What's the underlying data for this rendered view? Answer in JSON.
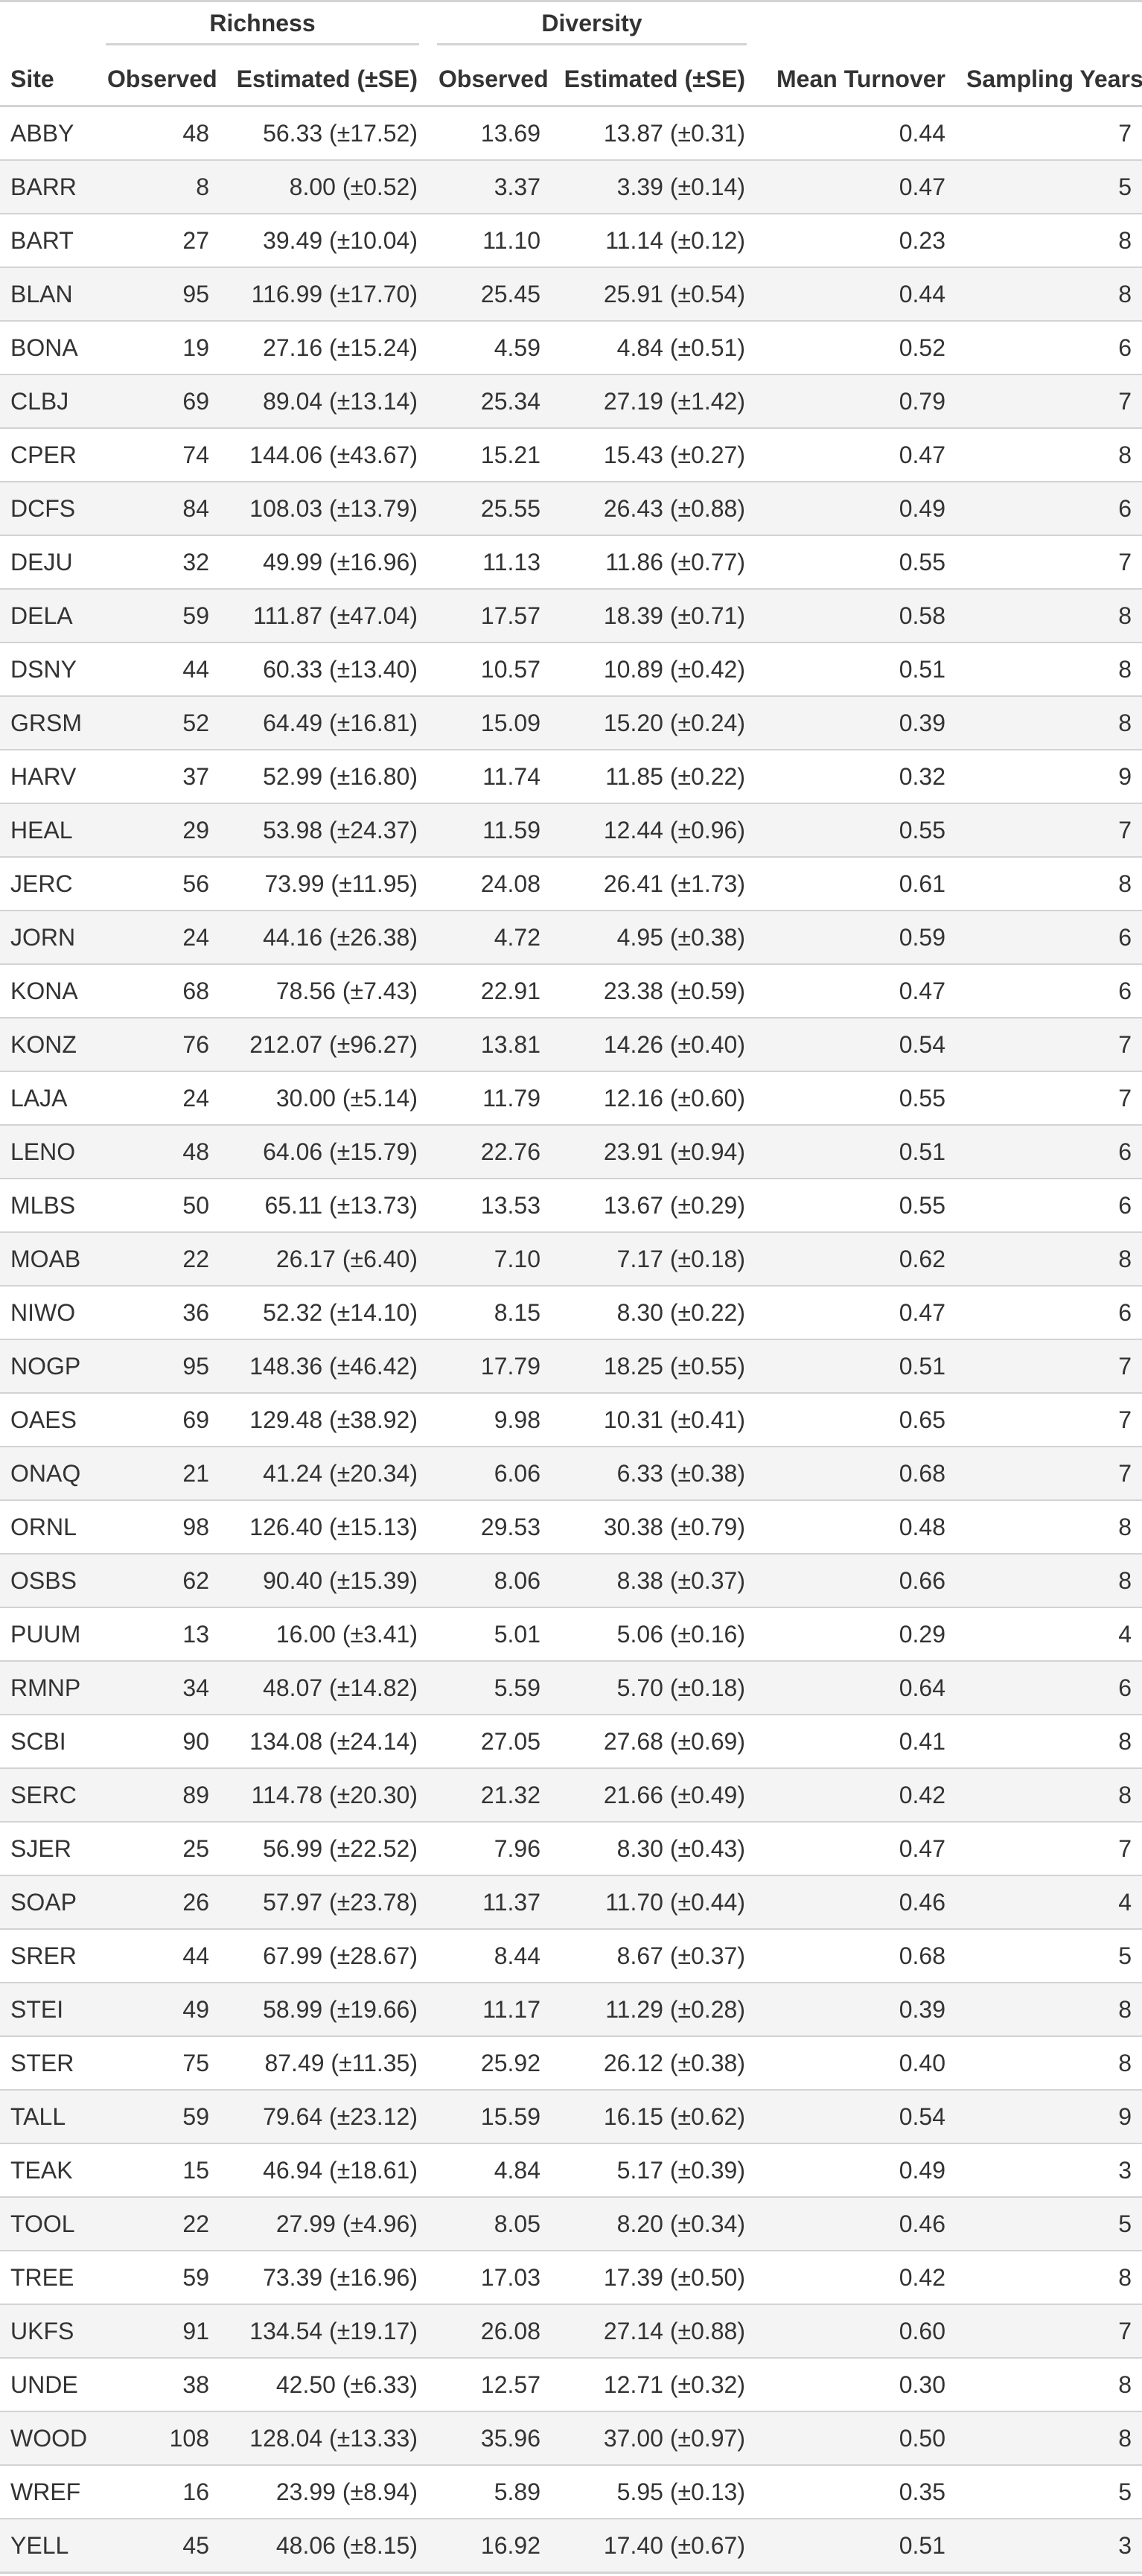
{
  "table": {
    "spanners": {
      "richness": "Richness",
      "diversity": "Diversity"
    },
    "columns": {
      "site": "Site",
      "richness_observed": "Observed",
      "richness_estimated": "Estimated (±SE)",
      "diversity_observed": "Observed",
      "diversity_estimated": "Estimated (±SE)",
      "mean_turnover": "Mean Turnover",
      "sampling_years": "Sampling Years"
    },
    "row_striping": "alternate rows shaded light gray (#f4f4f4)",
    "rows": [
      [
        "ABBY",
        "48",
        "56.33 (±17.52)",
        "13.69",
        "13.87 (±0.31)",
        "0.44",
        "7"
      ],
      [
        "BARR",
        "8",
        "8.00 (±0.52)",
        "3.37",
        "3.39 (±0.14)",
        "0.47",
        "5"
      ],
      [
        "BART",
        "27",
        "39.49 (±10.04)",
        "11.10",
        "11.14 (±0.12)",
        "0.23",
        "8"
      ],
      [
        "BLAN",
        "95",
        "116.99 (±17.70)",
        "25.45",
        "25.91 (±0.54)",
        "0.44",
        "8"
      ],
      [
        "BONA",
        "19",
        "27.16 (±15.24)",
        "4.59",
        "4.84 (±0.51)",
        "0.52",
        "6"
      ],
      [
        "CLBJ",
        "69",
        "89.04 (±13.14)",
        "25.34",
        "27.19 (±1.42)",
        "0.79",
        "7"
      ],
      [
        "CPER",
        "74",
        "144.06 (±43.67)",
        "15.21",
        "15.43 (±0.27)",
        "0.47",
        "8"
      ],
      [
        "DCFS",
        "84",
        "108.03 (±13.79)",
        "25.55",
        "26.43 (±0.88)",
        "0.49",
        "6"
      ],
      [
        "DEJU",
        "32",
        "49.99 (±16.96)",
        "11.13",
        "11.86 (±0.77)",
        "0.55",
        "7"
      ],
      [
        "DELA",
        "59",
        "111.87 (±47.04)",
        "17.57",
        "18.39 (±0.71)",
        "0.58",
        "8"
      ],
      [
        "DSNY",
        "44",
        "60.33 (±13.40)",
        "10.57",
        "10.89 (±0.42)",
        "0.51",
        "8"
      ],
      [
        "GRSM",
        "52",
        "64.49 (±16.81)",
        "15.09",
        "15.20 (±0.24)",
        "0.39",
        "8"
      ],
      [
        "HARV",
        "37",
        "52.99 (±16.80)",
        "11.74",
        "11.85 (±0.22)",
        "0.32",
        "9"
      ],
      [
        "HEAL",
        "29",
        "53.98 (±24.37)",
        "11.59",
        "12.44 (±0.96)",
        "0.55",
        "7"
      ],
      [
        "JERC",
        "56",
        "73.99 (±11.95)",
        "24.08",
        "26.41 (±1.73)",
        "0.61",
        "8"
      ],
      [
        "JORN",
        "24",
        "44.16 (±26.38)",
        "4.72",
        "4.95 (±0.38)",
        "0.59",
        "6"
      ],
      [
        "KONA",
        "68",
        "78.56 (±7.43)",
        "22.91",
        "23.38 (±0.59)",
        "0.47",
        "6"
      ],
      [
        "KONZ",
        "76",
        "212.07 (±96.27)",
        "13.81",
        "14.26 (±0.40)",
        "0.54",
        "7"
      ],
      [
        "LAJA",
        "24",
        "30.00 (±5.14)",
        "11.79",
        "12.16 (±0.60)",
        "0.55",
        "7"
      ],
      [
        "LENO",
        "48",
        "64.06 (±15.79)",
        "22.76",
        "23.91 (±0.94)",
        "0.51",
        "6"
      ],
      [
        "MLBS",
        "50",
        "65.11 (±13.73)",
        "13.53",
        "13.67 (±0.29)",
        "0.55",
        "6"
      ],
      [
        "MOAB",
        "22",
        "26.17 (±6.40)",
        "7.10",
        "7.17 (±0.18)",
        "0.62",
        "8"
      ],
      [
        "NIWO",
        "36",
        "52.32 (±14.10)",
        "8.15",
        "8.30 (±0.22)",
        "0.47",
        "6"
      ],
      [
        "NOGP",
        "95",
        "148.36 (±46.42)",
        "17.79",
        "18.25 (±0.55)",
        "0.51",
        "7"
      ],
      [
        "OAES",
        "69",
        "129.48 (±38.92)",
        "9.98",
        "10.31 (±0.41)",
        "0.65",
        "7"
      ],
      [
        "ONAQ",
        "21",
        "41.24 (±20.34)",
        "6.06",
        "6.33 (±0.38)",
        "0.68",
        "7"
      ],
      [
        "ORNL",
        "98",
        "126.40 (±15.13)",
        "29.53",
        "30.38 (±0.79)",
        "0.48",
        "8"
      ],
      [
        "OSBS",
        "62",
        "90.40 (±15.39)",
        "8.06",
        "8.38 (±0.37)",
        "0.66",
        "8"
      ],
      [
        "PUUM",
        "13",
        "16.00 (±3.41)",
        "5.01",
        "5.06 (±0.16)",
        "0.29",
        "4"
      ],
      [
        "RMNP",
        "34",
        "48.07 (±14.82)",
        "5.59",
        "5.70 (±0.18)",
        "0.64",
        "6"
      ],
      [
        "SCBI",
        "90",
        "134.08 (±24.14)",
        "27.05",
        "27.68 (±0.69)",
        "0.41",
        "8"
      ],
      [
        "SERC",
        "89",
        "114.78 (±20.30)",
        "21.32",
        "21.66 (±0.49)",
        "0.42",
        "8"
      ],
      [
        "SJER",
        "25",
        "56.99 (±22.52)",
        "7.96",
        "8.30 (±0.43)",
        "0.47",
        "7"
      ],
      [
        "SOAP",
        "26",
        "57.97 (±23.78)",
        "11.37",
        "11.70 (±0.44)",
        "0.46",
        "4"
      ],
      [
        "SRER",
        "44",
        "67.99 (±28.67)",
        "8.44",
        "8.67 (±0.37)",
        "0.68",
        "5"
      ],
      [
        "STEI",
        "49",
        "58.99 (±19.66)",
        "11.17",
        "11.29 (±0.28)",
        "0.39",
        "8"
      ],
      [
        "STER",
        "75",
        "87.49 (±11.35)",
        "25.92",
        "26.12 (±0.38)",
        "0.40",
        "8"
      ],
      [
        "TALL",
        "59",
        "79.64 (±23.12)",
        "15.59",
        "16.15 (±0.62)",
        "0.54",
        "9"
      ],
      [
        "TEAK",
        "15",
        "46.94 (±18.61)",
        "4.84",
        "5.17 (±0.39)",
        "0.49",
        "3"
      ],
      [
        "TOOL",
        "22",
        "27.99 (±4.96)",
        "8.05",
        "8.20 (±0.34)",
        "0.46",
        "5"
      ],
      [
        "TREE",
        "59",
        "73.39 (±16.96)",
        "17.03",
        "17.39 (±0.50)",
        "0.42",
        "8"
      ],
      [
        "UKFS",
        "91",
        "134.54 (±19.17)",
        "26.08",
        "27.14 (±0.88)",
        "0.60",
        "7"
      ],
      [
        "UNDE",
        "38",
        "42.50 (±6.33)",
        "12.57",
        "12.71 (±0.32)",
        "0.30",
        "8"
      ],
      [
        "WOOD",
        "108",
        "128.04 (±13.33)",
        "35.96",
        "37.00 (±0.97)",
        "0.50",
        "8"
      ],
      [
        "WREF",
        "16",
        "23.99 (±8.94)",
        "5.89",
        "5.95 (±0.13)",
        "0.35",
        "5"
      ],
      [
        "YELL",
        "45",
        "48.06 (±8.15)",
        "16.92",
        "17.40 (±0.67)",
        "0.51",
        "3"
      ]
    ]
  }
}
